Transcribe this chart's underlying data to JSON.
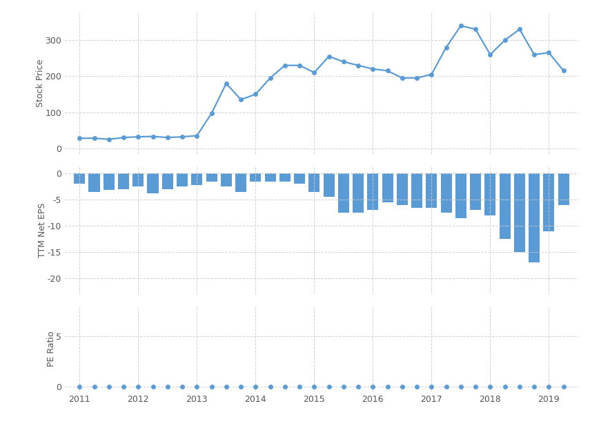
{
  "background_color": "#ffffff",
  "line_color": "#5b9bd5",
  "bar_color": "#5b9bd5",
  "grid_color": "#cccccc",
  "stock_price": {
    "ylabel": "Stock Price",
    "x": [
      2011.0,
      2011.25,
      2011.5,
      2011.75,
      2012.0,
      2012.25,
      2012.5,
      2012.75,
      2013.0,
      2013.25,
      2013.5,
      2013.75,
      2014.0,
      2014.25,
      2014.5,
      2014.75,
      2015.0,
      2015.25,
      2015.5,
      2015.75,
      2016.0,
      2016.25,
      2016.5,
      2016.75,
      2017.0,
      2017.25,
      2017.5,
      2017.75,
      2018.0,
      2018.25,
      2018.5,
      2018.75,
      2019.0,
      2019.25
    ],
    "y": [
      28,
      28,
      25,
      30,
      32,
      33,
      30,
      32,
      35,
      97,
      180,
      135,
      150,
      195,
      230,
      230,
      210,
      255,
      240,
      230,
      220,
      215,
      195,
      195,
      205,
      280,
      340,
      330,
      260,
      300,
      330,
      260,
      265,
      215
    ]
  },
  "eps": {
    "ylabel": "TTM Net EPS",
    "x": [
      2011.0,
      2011.25,
      2011.5,
      2011.75,
      2012.0,
      2012.25,
      2012.5,
      2012.75,
      2013.0,
      2013.25,
      2013.5,
      2013.75,
      2014.0,
      2014.25,
      2014.5,
      2014.75,
      2015.0,
      2015.25,
      2015.5,
      2015.75,
      2016.0,
      2016.25,
      2016.5,
      2016.75,
      2017.0,
      2017.25,
      2017.5,
      2017.75,
      2018.0,
      2018.25,
      2018.5,
      2018.75,
      2019.0,
      2019.25
    ],
    "y": [
      -2.0,
      -3.5,
      -3.2,
      -3.0,
      -2.5,
      -3.8,
      -3.0,
      -2.5,
      -2.2,
      -1.5,
      -2.5,
      -3.5,
      -1.5,
      -1.5,
      -1.5,
      -2.0,
      -3.5,
      -4.5,
      -7.5,
      -7.5,
      -7.0,
      -5.5,
      -6.0,
      -6.5,
      -6.5,
      -7.5,
      -8.5,
      -7.0,
      -8.0,
      -12.5,
      -15.0,
      -17.0,
      -11.0,
      -6.0
    ]
  },
  "pe": {
    "ylabel": "PE Ratio",
    "x": [
      2011.0,
      2011.25,
      2011.5,
      2011.75,
      2012.0,
      2012.25,
      2012.5,
      2012.75,
      2013.0,
      2013.25,
      2013.5,
      2013.75,
      2014.0,
      2014.25,
      2014.5,
      2014.75,
      2015.0,
      2015.25,
      2015.5,
      2015.75,
      2016.0,
      2016.25,
      2016.5,
      2016.75,
      2017.0,
      2017.25,
      2017.5,
      2017.75,
      2018.0,
      2018.25,
      2018.5,
      2018.75,
      2019.0,
      2019.25
    ],
    "y": [
      0,
      0,
      0,
      0,
      0,
      0,
      0,
      0,
      0,
      0,
      0,
      0,
      0,
      0,
      0,
      0,
      0,
      0,
      0,
      0,
      0,
      0,
      0,
      0,
      0,
      0,
      0,
      0,
      0,
      0,
      0,
      0,
      0,
      0
    ]
  },
  "xlim": [
    2010.75,
    2019.5
  ],
  "xticks": [
    2011,
    2012,
    2013,
    2014,
    2015,
    2016,
    2017,
    2018,
    2019
  ],
  "xtick_labels": [
    "2011",
    "2012",
    "2013",
    "2014",
    "2015",
    "2016",
    "2017",
    "2018",
    "2019"
  ],
  "stock_yticks": [
    0,
    100,
    200,
    300
  ],
  "stock_ytick_labels": [
    "0",
    "100",
    "200",
    "300"
  ],
  "stock_ylim": [
    -15,
    375
  ],
  "eps_yticks": [
    -20,
    -15,
    -10,
    -5,
    0
  ],
  "eps_ytick_labels": [
    "-20",
    "-15",
    "-10",
    "-5",
    "0"
  ],
  "eps_ylim": [
    -23,
    1.5
  ],
  "pe_yticks": [
    0,
    5
  ],
  "pe_ytick_labels": [
    "0",
    "5"
  ],
  "pe_ylim": [
    -0.5,
    8
  ]
}
